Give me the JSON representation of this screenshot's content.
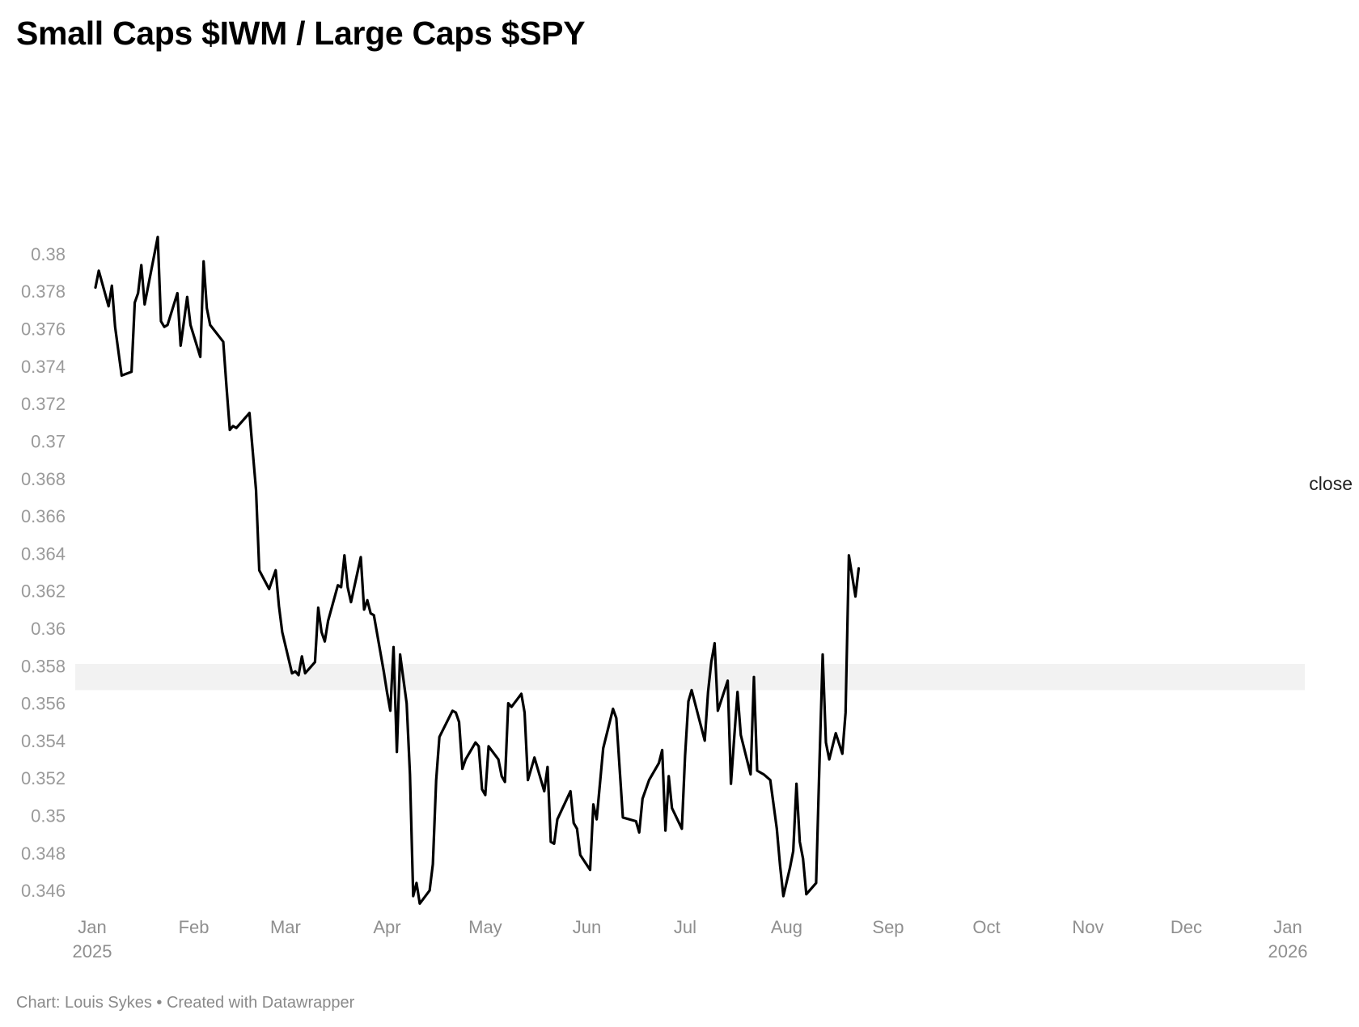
{
  "title": "Small Caps $IWM / Large Caps $SPY",
  "footer": "Chart: Louis Sykes • Created with Datawrapper",
  "chart_data": {
    "type": "line",
    "title": "Small Caps $IWM / Large Caps $SPY",
    "xlabel": "",
    "ylabel": "",
    "xlim": [
      "2025-01-01",
      "2026-01-01"
    ],
    "ylim": [
      0.3451,
      0.3898
    ],
    "grid": false,
    "line_color": "#000000",
    "band_color": "#f2f2f2",
    "y_ticks": [
      {
        "value": 0.38,
        "label": "0.38"
      },
      {
        "value": 0.378,
        "label": "0.378"
      },
      {
        "value": 0.376,
        "label": "0.376"
      },
      {
        "value": 0.374,
        "label": "0.374"
      },
      {
        "value": 0.372,
        "label": "0.372"
      },
      {
        "value": 0.37,
        "label": "0.37"
      },
      {
        "value": 0.368,
        "label": "0.368"
      },
      {
        "value": 0.366,
        "label": "0.366"
      },
      {
        "value": 0.364,
        "label": "0.364"
      },
      {
        "value": 0.362,
        "label": "0.362"
      },
      {
        "value": 0.36,
        "label": "0.36"
      },
      {
        "value": 0.358,
        "label": "0.358"
      },
      {
        "value": 0.356,
        "label": "0.356"
      },
      {
        "value": 0.354,
        "label": "0.354"
      },
      {
        "value": 0.352,
        "label": "0.352"
      },
      {
        "value": 0.35,
        "label": "0.35"
      },
      {
        "value": 0.348,
        "label": "0.348"
      },
      {
        "value": 0.346,
        "label": "0.346"
      }
    ],
    "x_ticks": [
      {
        "date": "2025-01-01",
        "label": "Jan",
        "sub": "2025"
      },
      {
        "date": "2025-02-01",
        "label": "Feb",
        "sub": ""
      },
      {
        "date": "2025-03-01",
        "label": "Mar",
        "sub": ""
      },
      {
        "date": "2025-04-01",
        "label": "Apr",
        "sub": ""
      },
      {
        "date": "2025-05-01",
        "label": "May",
        "sub": ""
      },
      {
        "date": "2025-06-01",
        "label": "Jun",
        "sub": ""
      },
      {
        "date": "2025-07-01",
        "label": "Jul",
        "sub": ""
      },
      {
        "date": "2025-08-01",
        "label": "Aug",
        "sub": ""
      },
      {
        "date": "2025-09-01",
        "label": "Sep",
        "sub": ""
      },
      {
        "date": "2025-10-01",
        "label": "Oct",
        "sub": ""
      },
      {
        "date": "2025-11-01",
        "label": "Nov",
        "sub": ""
      },
      {
        "date": "2025-12-01",
        "label": "Dec",
        "sub": ""
      },
      {
        "date": "2026-01-01",
        "label": "Jan",
        "sub": "2026"
      }
    ],
    "band": {
      "y_from": 0.3567,
      "y_to": 0.3581
    },
    "series": [
      {
        "name": "close",
        "points": [
          [
            "2025-01-02",
            0.3782
          ],
          [
            "2025-01-03",
            0.3791
          ],
          [
            "2025-01-06",
            0.3772
          ],
          [
            "2025-01-07",
            0.3783
          ],
          [
            "2025-01-08",
            0.3761
          ],
          [
            "2025-01-10",
            0.3735
          ],
          [
            "2025-01-13",
            0.3737
          ],
          [
            "2025-01-14",
            0.3774
          ],
          [
            "2025-01-15",
            0.3779
          ],
          [
            "2025-01-16",
            0.3794
          ],
          [
            "2025-01-17",
            0.3773
          ],
          [
            "2025-01-21",
            0.3809
          ],
          [
            "2025-01-22",
            0.3764
          ],
          [
            "2025-01-23",
            0.3761
          ],
          [
            "2025-01-24",
            0.3762
          ],
          [
            "2025-01-27",
            0.3779
          ],
          [
            "2025-01-28",
            0.3751
          ],
          [
            "2025-01-29",
            0.3764
          ],
          [
            "2025-01-30",
            0.3777
          ],
          [
            "2025-01-31",
            0.3762
          ],
          [
            "2025-02-03",
            0.3745
          ],
          [
            "2025-02-04",
            0.3796
          ],
          [
            "2025-02-05",
            0.3771
          ],
          [
            "2025-02-06",
            0.3762
          ],
          [
            "2025-02-10",
            0.3753
          ],
          [
            "2025-02-11",
            0.3729
          ],
          [
            "2025-02-12",
            0.3706
          ],
          [
            "2025-02-13",
            0.3708
          ],
          [
            "2025-02-14",
            0.3707
          ],
          [
            "2025-02-18",
            0.3715
          ],
          [
            "2025-02-20",
            0.3674
          ],
          [
            "2025-02-21",
            0.3631
          ],
          [
            "2025-02-24",
            0.3621
          ],
          [
            "2025-02-25",
            0.3626
          ],
          [
            "2025-02-26",
            0.3631
          ],
          [
            "2025-02-27",
            0.3612
          ],
          [
            "2025-02-28",
            0.3598
          ],
          [
            "2025-03-03",
            0.3576
          ],
          [
            "2025-03-04",
            0.3577
          ],
          [
            "2025-03-05",
            0.3575
          ],
          [
            "2025-03-06",
            0.3585
          ],
          [
            "2025-03-07",
            0.3576
          ],
          [
            "2025-03-10",
            0.3582
          ],
          [
            "2025-03-11",
            0.3611
          ],
          [
            "2025-03-12",
            0.3598
          ],
          [
            "2025-03-13",
            0.3593
          ],
          [
            "2025-03-14",
            0.3604
          ],
          [
            "2025-03-17",
            0.3623
          ],
          [
            "2025-03-18",
            0.3622
          ],
          [
            "2025-03-19",
            0.3639
          ],
          [
            "2025-03-20",
            0.3622
          ],
          [
            "2025-03-21",
            0.3614
          ],
          [
            "2025-03-24",
            0.3638
          ],
          [
            "2025-03-25",
            0.361
          ],
          [
            "2025-03-26",
            0.3615
          ],
          [
            "2025-03-27",
            0.3608
          ],
          [
            "2025-03-28",
            0.3607
          ],
          [
            "2025-03-31",
            0.3577
          ],
          [
            "2025-04-01",
            0.3566
          ],
          [
            "2025-04-02",
            0.3556
          ],
          [
            "2025-04-03",
            0.359
          ],
          [
            "2025-04-04",
            0.3534
          ],
          [
            "2025-04-05",
            0.3586
          ],
          [
            "2025-04-07",
            0.356
          ],
          [
            "2025-04-08",
            0.3522
          ],
          [
            "2025-04-09",
            0.3457
          ],
          [
            "2025-04-10",
            0.3464
          ],
          [
            "2025-04-11",
            0.3453
          ],
          [
            "2025-04-14",
            0.346
          ],
          [
            "2025-04-15",
            0.3474
          ],
          [
            "2025-04-16",
            0.3519
          ],
          [
            "2025-04-17",
            0.3542
          ],
          [
            "2025-04-21",
            0.3556
          ],
          [
            "2025-04-22",
            0.3555
          ],
          [
            "2025-04-23",
            0.355
          ],
          [
            "2025-04-24",
            0.3525
          ],
          [
            "2025-04-25",
            0.353
          ],
          [
            "2025-04-28",
            0.3539
          ],
          [
            "2025-04-29",
            0.3537
          ],
          [
            "2025-04-30",
            0.3514
          ],
          [
            "2025-05-01",
            0.3511
          ],
          [
            "2025-05-02",
            0.3537
          ],
          [
            "2025-05-05",
            0.353
          ],
          [
            "2025-05-06",
            0.3521
          ],
          [
            "2025-05-07",
            0.3518
          ],
          [
            "2025-05-08",
            0.356
          ],
          [
            "2025-05-09",
            0.3558
          ],
          [
            "2025-05-12",
            0.3565
          ],
          [
            "2025-05-13",
            0.3555
          ],
          [
            "2025-05-14",
            0.3519
          ],
          [
            "2025-05-16",
            0.3531
          ],
          [
            "2025-05-19",
            0.3513
          ],
          [
            "2025-05-20",
            0.3526
          ],
          [
            "2025-05-21",
            0.3486
          ],
          [
            "2025-05-22",
            0.3485
          ],
          [
            "2025-05-23",
            0.3498
          ],
          [
            "2025-05-27",
            0.3513
          ],
          [
            "2025-05-28",
            0.3496
          ],
          [
            "2025-05-29",
            0.3493
          ],
          [
            "2025-05-30",
            0.3479
          ],
          [
            "2025-06-02",
            0.3471
          ],
          [
            "2025-06-03",
            0.3506
          ],
          [
            "2025-06-04",
            0.3498
          ],
          [
            "2025-06-06",
            0.3536
          ],
          [
            "2025-06-09",
            0.3557
          ],
          [
            "2025-06-10",
            0.3552
          ],
          [
            "2025-06-12",
            0.3499
          ],
          [
            "2025-06-16",
            0.3497
          ],
          [
            "2025-06-17",
            0.3491
          ],
          [
            "2025-06-18",
            0.3509
          ],
          [
            "2025-06-20",
            0.3519
          ],
          [
            "2025-06-23",
            0.3528
          ],
          [
            "2025-06-24",
            0.3535
          ],
          [
            "2025-06-25",
            0.3492
          ],
          [
            "2025-06-26",
            0.3521
          ],
          [
            "2025-06-27",
            0.3504
          ],
          [
            "2025-06-30",
            0.3493
          ],
          [
            "2025-07-01",
            0.3532
          ],
          [
            "2025-07-02",
            0.3561
          ],
          [
            "2025-07-03",
            0.3567
          ],
          [
            "2025-07-07",
            0.354
          ],
          [
            "2025-07-08",
            0.3566
          ],
          [
            "2025-07-09",
            0.3582
          ],
          [
            "2025-07-10",
            0.3592
          ],
          [
            "2025-07-11",
            0.3556
          ],
          [
            "2025-07-14",
            0.3572
          ],
          [
            "2025-07-15",
            0.3517
          ],
          [
            "2025-07-16",
            0.3542
          ],
          [
            "2025-07-17",
            0.3566
          ],
          [
            "2025-07-18",
            0.3543
          ],
          [
            "2025-07-21",
            0.3522
          ],
          [
            "2025-07-22",
            0.3574
          ],
          [
            "2025-07-23",
            0.3524
          ],
          [
            "2025-07-25",
            0.3522
          ],
          [
            "2025-07-27",
            0.3519
          ],
          [
            "2025-07-29",
            0.3493
          ],
          [
            "2025-07-30",
            0.3473
          ],
          [
            "2025-07-31",
            0.3457
          ],
          [
            "2025-08-02",
            0.3472
          ],
          [
            "2025-08-03",
            0.3481
          ],
          [
            "2025-08-04",
            0.3517
          ],
          [
            "2025-08-05",
            0.3486
          ],
          [
            "2025-08-06",
            0.3477
          ],
          [
            "2025-08-07",
            0.3458
          ],
          [
            "2025-08-10",
            0.3464
          ],
          [
            "2025-08-11",
            0.3526
          ],
          [
            "2025-08-12",
            0.3586
          ],
          [
            "2025-08-13",
            0.3539
          ],
          [
            "2025-08-14",
            0.353
          ],
          [
            "2025-08-16",
            0.3544
          ],
          [
            "2025-08-18",
            0.3533
          ],
          [
            "2025-08-19",
            0.3555
          ],
          [
            "2025-08-20",
            0.3639
          ],
          [
            "2025-08-22",
            0.3617
          ],
          [
            "2025-08-23",
            0.3632
          ]
        ]
      }
    ]
  }
}
